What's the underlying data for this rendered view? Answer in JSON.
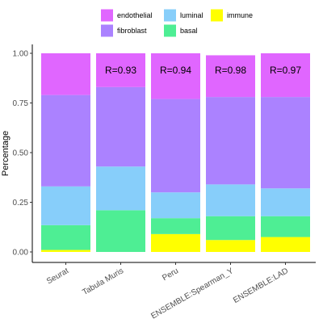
{
  "chart_data": {
    "type": "bar",
    "stacked": true,
    "title": "",
    "xlabel": "",
    "ylabel": "Percentage",
    "ylim": [
      0,
      1
    ],
    "yticks": [
      "0.00",
      "0.25",
      "0.50",
      "0.75",
      "1.00"
    ],
    "ytick_values": [
      0,
      0.25,
      0.5,
      0.75,
      1.0
    ],
    "categories": [
      "Seurat",
      "Tabula Muris",
      "Peru",
      "ENSEMBLE:Spearman_Y",
      "ENSEMBLE:LAD"
    ],
    "stack_order_bottom_to_top": [
      "immune",
      "basal",
      "luminal",
      "fibroblast",
      "endothelial"
    ],
    "series": [
      {
        "name": "endothelial",
        "color": "#E066FF",
        "values": [
          0.21,
          0.17,
          0.23,
          0.21,
          0.22
        ]
      },
      {
        "name": "fibroblast",
        "color": "#AB82FF",
        "values": [
          0.46,
          0.4,
          0.47,
          0.44,
          0.46
        ]
      },
      {
        "name": "luminal",
        "color": "#87CEFA",
        "values": [
          0.195,
          0.22,
          0.13,
          0.16,
          0.14
        ]
      },
      {
        "name": "basal",
        "color": "#4EEE94",
        "values": [
          0.125,
          0.21,
          0.08,
          0.12,
          0.105
        ]
      },
      {
        "name": "immune",
        "color": "#FFFF00",
        "values": [
          0.01,
          0.0,
          0.09,
          0.06,
          0.075
        ]
      }
    ],
    "bar_labels": [
      "",
      "R=0.93",
      "R=0.94",
      "R=0.98",
      "R=0.97"
    ],
    "legend": {
      "position": "top",
      "items": [
        {
          "name": "endothelial",
          "color": "#E066FF"
        },
        {
          "name": "luminal",
          "color": "#87CEFA"
        },
        {
          "name": "immune",
          "color": "#FFFF00"
        },
        {
          "name": "fibroblast",
          "color": "#AB82FF"
        },
        {
          "name": "basal",
          "color": "#4EEE94"
        }
      ]
    },
    "grid": false
  }
}
